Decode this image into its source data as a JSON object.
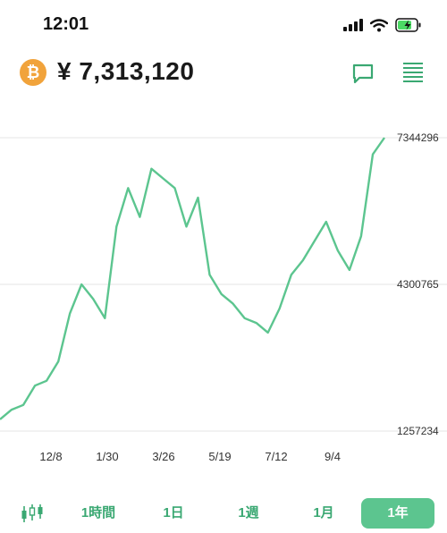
{
  "status_bar": {
    "time": "12:01"
  },
  "header": {
    "coin_icon": "bitcoin-icon",
    "coin_symbol": "₿",
    "price": "¥ 7,313,120",
    "chat_icon": "chat-bubble-icon",
    "menu_icon": "order-book-icon"
  },
  "colors": {
    "accent": "#5cc58f",
    "accent_text": "#3aa872",
    "coin": "#f1a33b",
    "grid": "#e6e6e6"
  },
  "chart_data": {
    "type": "line",
    "title": "",
    "xlabel": "",
    "ylabel": "",
    "x_ticks": [
      "12/8",
      "1/30",
      "3/26",
      "5/19",
      "7/12",
      "9/4"
    ],
    "y_ticks": [
      "7344296",
      "4300765",
      "1257234"
    ],
    "ylim": [
      1257234,
      7344296
    ],
    "series": [
      {
        "values": [
          1500000,
          1700000,
          1800000,
          2200000,
          2300000,
          2700000,
          3700000,
          4300000,
          4000000,
          3600000,
          5500000,
          6300000,
          5700000,
          6700000,
          6500000,
          6300000,
          5500000,
          6100000,
          4500000,
          4100000,
          3900000,
          3600000,
          3500000,
          3300000,
          3800000,
          4500000,
          4800000,
          5200000,
          5600000,
          5000000,
          4600000,
          5300000,
          7000000,
          7344296
        ]
      }
    ]
  },
  "tabs": {
    "candle_icon": "candlestick-icon",
    "items": [
      {
        "label": "1時間"
      },
      {
        "label": "1日"
      },
      {
        "label": "1週"
      },
      {
        "label": "1月"
      },
      {
        "label": "1年"
      }
    ],
    "active": "1年"
  }
}
